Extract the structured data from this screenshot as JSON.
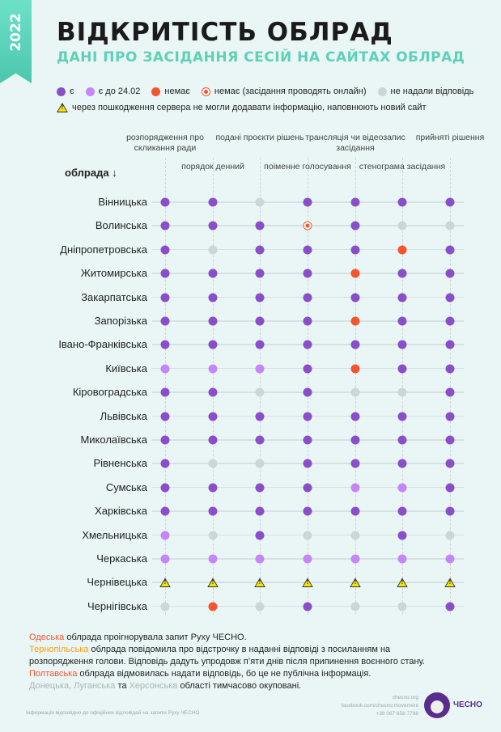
{
  "ribbon": {
    "year": "2022"
  },
  "header": {
    "title": "ВІДКРИТІСТЬ ОБЛРАД",
    "subtitle": "ДАНІ ПРО ЗАСІДАННЯ СЕСІЙ НА САЙТАХ ОБЛРАД"
  },
  "colors": {
    "yes": "#8a4fc8",
    "before": "#c586f7",
    "no": "#f4552f",
    "none": "#cdd6d6",
    "accent": "#5fd0b8"
  },
  "legend": [
    {
      "code": "y",
      "label": "є"
    },
    {
      "code": "l",
      "label": "є до 24.02"
    },
    {
      "code": "n",
      "label": "немає"
    },
    {
      "code": "o",
      "label": "немає (засідання проводять онлайн)"
    },
    {
      "code": "g",
      "label": "не надали відповідь"
    }
  ],
  "legend_warning": {
    "code": "w",
    "label": "через пошкодження сервера не могли додавати інформацію, наповнюють новий сайт"
  },
  "table": {
    "row_header": "облрада ↓",
    "columns": [
      "розпорядження про скликання ради",
      "порядок денний",
      "подані проєкти рішень",
      "поіменне голосування",
      "трансляція чи відеозапис засідання",
      "стенограма засідання",
      "прийняті рішення"
    ],
    "rows": [
      {
        "name": "Вінницька",
        "v": [
          "y",
          "y",
          "g",
          "y",
          "y",
          "y",
          "y"
        ]
      },
      {
        "name": "Волинська",
        "v": [
          "y",
          "y",
          "y",
          "o",
          "y",
          "g",
          "g"
        ]
      },
      {
        "name": "Дніпропетровська",
        "v": [
          "y",
          "g",
          "y",
          "y",
          "y",
          "n",
          "y"
        ]
      },
      {
        "name": "Житомирська",
        "v": [
          "y",
          "y",
          "y",
          "y",
          "n",
          "y",
          "y"
        ]
      },
      {
        "name": "Закарпатська",
        "v": [
          "y",
          "y",
          "y",
          "y",
          "y",
          "y",
          "y"
        ]
      },
      {
        "name": "Запорізька",
        "v": [
          "y",
          "y",
          "y",
          "y",
          "n",
          "y",
          "y"
        ]
      },
      {
        "name": "Івано-Франківська",
        "v": [
          "y",
          "y",
          "y",
          "y",
          "y",
          "y",
          "y"
        ]
      },
      {
        "name": "Київська",
        "v": [
          "l",
          "l",
          "l",
          "y",
          "n",
          "y",
          "y"
        ]
      },
      {
        "name": "Кіровоградська",
        "v": [
          "y",
          "y",
          "g",
          "y",
          "g",
          "g",
          "y"
        ]
      },
      {
        "name": "Львівська",
        "v": [
          "y",
          "y",
          "y",
          "y",
          "y",
          "y",
          "y"
        ]
      },
      {
        "name": "Миколаївська",
        "v": [
          "y",
          "y",
          "y",
          "y",
          "y",
          "y",
          "y"
        ]
      },
      {
        "name": "Рівненська",
        "v": [
          "y",
          "g",
          "g",
          "y",
          "y",
          "y",
          "y"
        ]
      },
      {
        "name": "Сумська",
        "v": [
          "y",
          "y",
          "y",
          "y",
          "l",
          "l",
          "y"
        ]
      },
      {
        "name": "Харківська",
        "v": [
          "y",
          "y",
          "y",
          "y",
          "y",
          "y",
          "y"
        ]
      },
      {
        "name": "Хмельницька",
        "v": [
          "l",
          "g",
          "y",
          "g",
          "g",
          "y",
          "g"
        ]
      },
      {
        "name": "Черкаська",
        "v": [
          "l",
          "l",
          "l",
          "l",
          "l",
          "l",
          "l"
        ]
      },
      {
        "name": "Чернівецька",
        "v": [
          "w",
          "w",
          "w",
          "w",
          "w",
          "w",
          "w"
        ]
      },
      {
        "name": "Чернігівська",
        "v": [
          "g",
          "n",
          "g",
          "y",
          "g",
          "g",
          "y"
        ]
      }
    ]
  },
  "notes": {
    "n1_region": "Одеська",
    "n1_text": " облрада проігнорувала запит Руху ЧЕСНО.",
    "n2_region": "Тернопільська",
    "n2_text": " облрада повідомила про відстрочку в наданні відповіді з посиланням на",
    "n2_text2": "розпорядження голови. Відповідь дадуть упродовж п’яти днів після припинення воєнного стану.",
    "n3_region": "Полтавська",
    "n3_text": " облрада відмовилась надати відповідь, бо це не публічна інформація.",
    "n4_r1": "Донецька",
    "n4_sep": ", ",
    "n4_r2": "Луганська",
    "n4_and": " та ",
    "n4_r3": "Херсонська",
    "n4_text": " області тимчасово окуповані."
  },
  "footer": {
    "source": "Інформація відповідно до офіційних відповідей на запити Руху ЧЕСНО",
    "site": "chesno.org",
    "facebook": "facebook.com/chesno.movement",
    "phone": "+38 067 658 7798",
    "logo": "ЧЕСНО"
  }
}
